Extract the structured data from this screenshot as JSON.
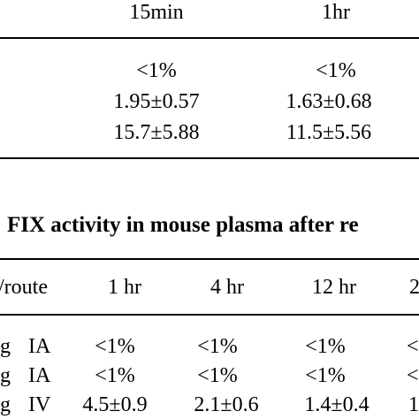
{
  "table1": {
    "headers": [
      "15min",
      "1hr"
    ],
    "rows": [
      [
        "<1%",
        "<1%"
      ],
      [
        "1.95±0.57",
        "1.63±0.68"
      ],
      [
        "15.7±5.88",
        "11.5±5.56"
      ]
    ]
  },
  "table2": {
    "title": "FIX activity in mouse plasma after re",
    "headers": [
      "/route",
      "1 hr",
      "4 hr",
      "12 hr",
      "2"
    ],
    "rows": [
      {
        "dose": "g",
        "route": "IA",
        "values": [
          "<1%",
          "<1%",
          "<1%",
          "<"
        ]
      },
      {
        "dose": "g",
        "route": "IA",
        "values": [
          "<1%",
          "<1%",
          "<1%",
          "<"
        ]
      },
      {
        "dose": "g",
        "route": "IV",
        "values": [
          "4.5±0.9",
          "2.1±0.6",
          "1.4±0.4",
          "1"
        ]
      }
    ]
  }
}
